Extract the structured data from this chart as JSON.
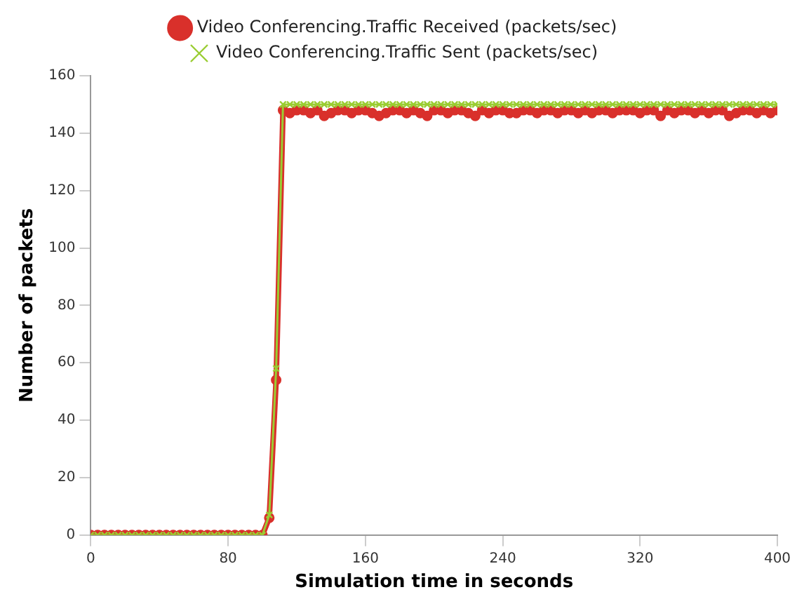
{
  "chart_data": {
    "type": "line",
    "xlabel": "Simulation time in seconds",
    "ylabel": "Number of packets",
    "x": [
      0,
      4,
      8,
      12,
      16,
      20,
      24,
      28,
      32,
      36,
      40,
      44,
      48,
      52,
      56,
      60,
      64,
      68,
      72,
      76,
      80,
      84,
      88,
      92,
      96,
      100,
      104,
      108,
      112,
      116,
      120,
      124,
      128,
      132,
      136,
      140,
      144,
      148,
      152,
      156,
      160,
      164,
      168,
      172,
      176,
      180,
      184,
      188,
      192,
      196,
      200,
      204,
      208,
      212,
      216,
      220,
      224,
      228,
      232,
      236,
      240,
      244,
      248,
      252,
      256,
      260,
      264,
      268,
      272,
      276,
      280,
      284,
      288,
      292,
      296,
      300,
      304,
      308,
      312,
      316,
      320,
      324,
      328,
      332,
      336,
      340,
      344,
      348,
      352,
      356,
      360,
      364,
      368,
      372,
      376,
      380,
      384,
      388,
      392,
      396,
      400
    ],
    "series": [
      {
        "name": "Video Conferencing.Traffic Received (packets/sec)",
        "color": "#d9302b",
        "marker": "circle",
        "values": [
          0,
          0,
          0,
          0,
          0,
          0,
          0,
          0,
          0,
          0,
          0,
          0,
          0,
          0,
          0,
          0,
          0,
          0,
          0,
          0,
          0,
          0,
          0,
          0,
          0,
          0,
          6,
          54,
          148,
          147,
          148,
          148,
          147,
          148,
          146,
          147,
          148,
          148,
          147,
          148,
          148,
          147,
          146,
          147,
          148,
          148,
          147,
          148,
          147,
          146,
          148,
          148,
          147,
          148,
          148,
          147,
          146,
          148,
          147,
          148,
          148,
          147,
          147,
          148,
          148,
          147,
          148,
          148,
          147,
          148,
          148,
          147,
          148,
          147,
          148,
          148,
          147,
          148,
          148,
          148,
          147,
          148,
          148,
          146,
          148,
          147,
          148,
          148,
          147,
          148,
          147,
          148,
          148,
          146,
          147,
          148,
          148,
          147,
          148,
          147,
          148
        ]
      },
      {
        "name": "Video Conferencing.Traffic Sent (packets/sec)",
        "color": "#9acd32",
        "marker": "cross",
        "values": [
          0,
          0,
          0,
          0,
          0,
          0,
          0,
          0,
          0,
          0,
          0,
          0,
          0,
          0,
          0,
          0,
          0,
          0,
          0,
          0,
          0,
          0,
          0,
          0,
          0,
          0,
          7,
          58,
          150,
          150,
          150,
          150,
          150,
          150,
          150,
          150,
          150,
          150,
          150,
          150,
          150,
          150,
          150,
          150,
          150,
          150,
          150,
          150,
          150,
          150,
          150,
          150,
          150,
          150,
          150,
          150,
          150,
          150,
          150,
          150,
          150,
          150,
          150,
          150,
          150,
          150,
          150,
          150,
          150,
          150,
          150,
          150,
          150,
          150,
          150,
          150,
          150,
          150,
          150,
          150,
          150,
          150,
          150,
          150,
          150,
          150,
          150,
          150,
          150,
          150,
          150,
          150,
          150,
          150,
          150,
          150,
          150,
          150,
          150,
          150,
          150
        ]
      }
    ],
    "xlim": [
      0,
      400
    ],
    "xticks": [
      0,
      80,
      160,
      240,
      320,
      400
    ],
    "ylim": [
      0,
      160
    ],
    "yticks": [
      0,
      20,
      40,
      60,
      80,
      100,
      120,
      140,
      160
    ],
    "grid": false,
    "legend": "top"
  }
}
